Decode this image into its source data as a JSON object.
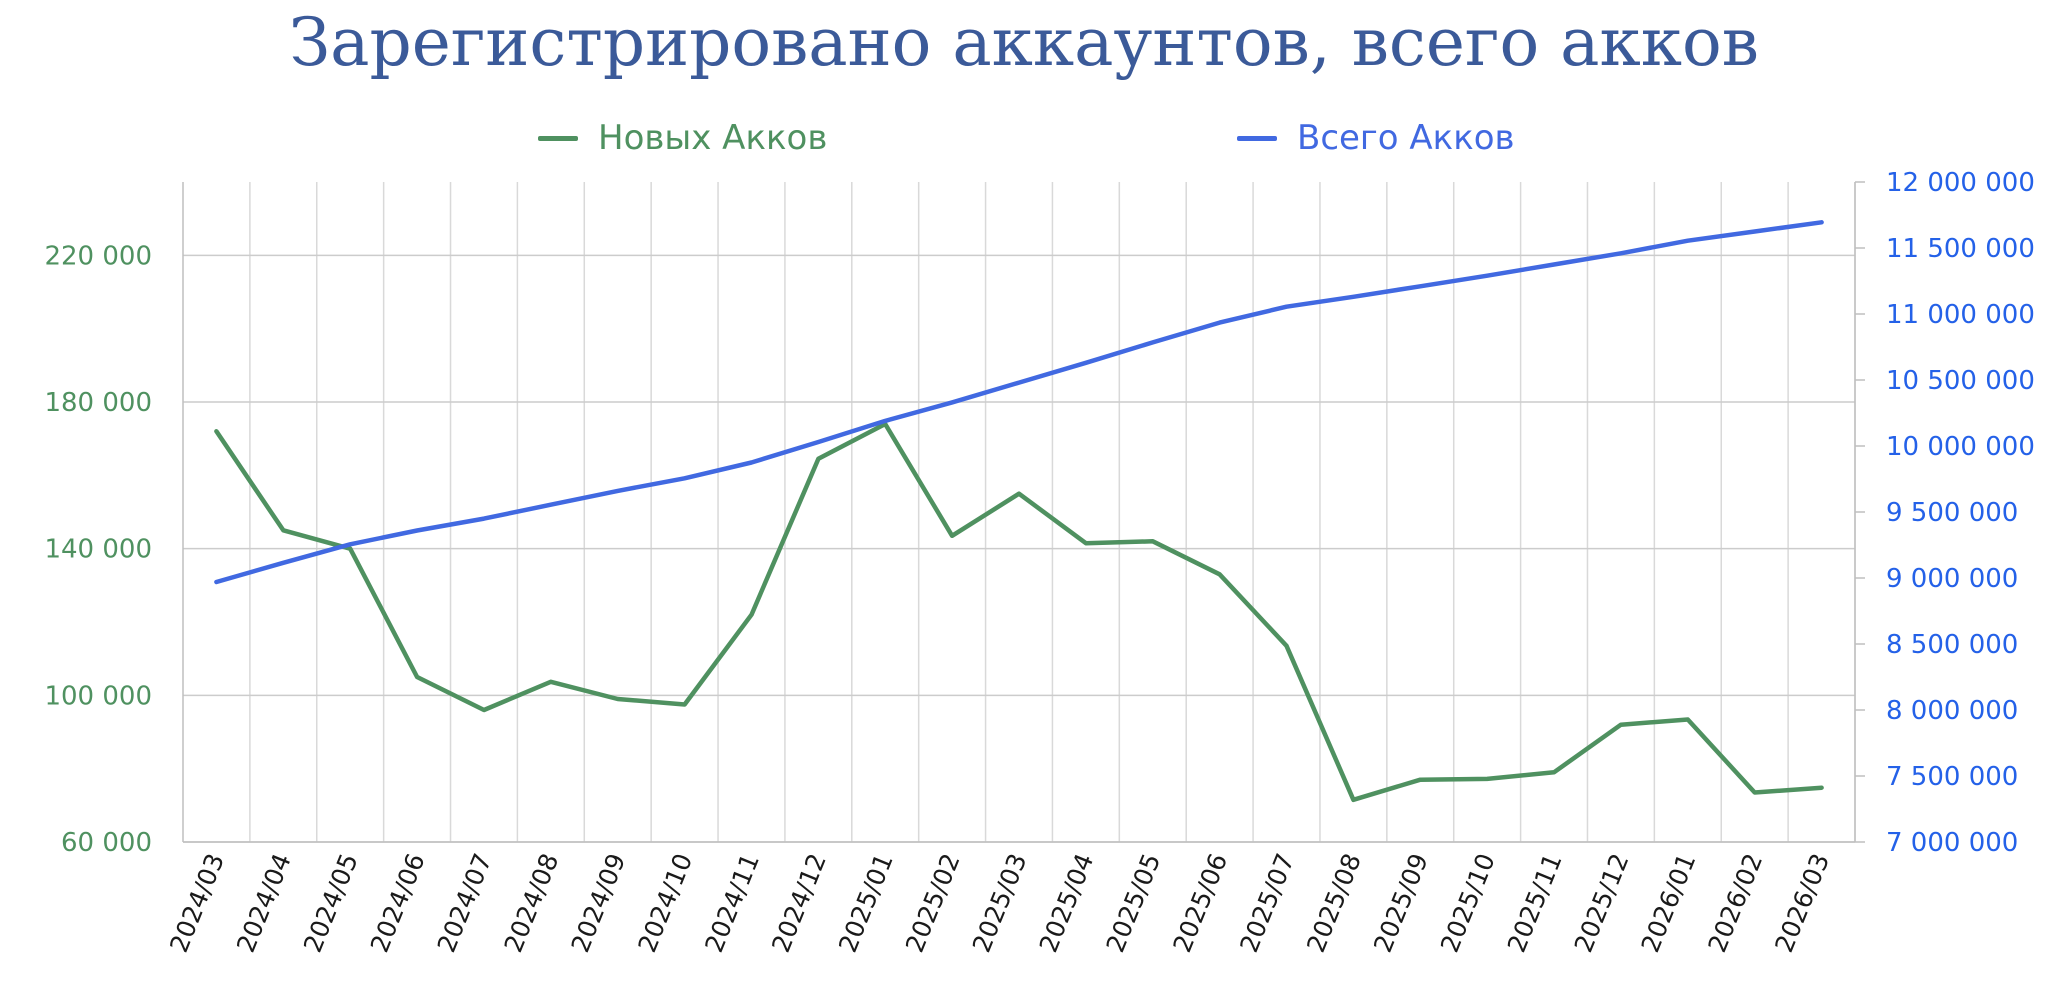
{
  "chart_data": {
    "type": "line",
    "title": "Зарегистрировано аккаунтов, всего акков",
    "categories": [
      "2024/03",
      "2024/04",
      "2024/05",
      "2024/06",
      "2024/07",
      "2024/08",
      "2024/09",
      "2024/10",
      "2024/11",
      "2024/12",
      "2025/01",
      "2025/02",
      "2025/03",
      "2025/04",
      "2025/05",
      "2025/06",
      "2025/07",
      "2025/08",
      "2025/09",
      "2025/10",
      "2025/11",
      "2025/12",
      "2026/01",
      "2026/02",
      "2026/03"
    ],
    "series": [
      {
        "name": "Новых Акков",
        "axis": "left",
        "color": "#4f9160",
        "values": [
          172000,
          145000,
          140000,
          105000,
          96000,
          103700,
          99000,
          97500,
          122000,
          164500,
          174000,
          143500,
          155000,
          141500,
          142000,
          133000,
          113500,
          71500,
          77000,
          77200,
          79000,
          92000,
          93400,
          73500,
          74800
        ]
      },
      {
        "name": "Всего Акков",
        "axis": "right",
        "color": "#4169e1",
        "values": [
          8970000,
          9115000,
          9255000,
          9360000,
          9450000,
          9555000,
          9660000,
          9755000,
          9875000,
          10030000,
          10190000,
          10330000,
          10480000,
          10630000,
          10785000,
          10935000,
          11055000,
          11130000,
          11210000,
          11290000,
          11375000,
          11460000,
          11555000,
          11625000,
          11695000
        ]
      }
    ],
    "y_left": {
      "min": 60000,
      "max": 240000,
      "ticks": [
        60000,
        100000,
        140000,
        180000,
        220000
      ],
      "tick_labels": [
        "60 000",
        "100 000",
        "140 000",
        "180 000",
        "220 000"
      ],
      "color": "#4f9160"
    },
    "y_right": {
      "min": 7000000,
      "max": 12000000,
      "ticks": [
        7000000,
        7500000,
        8000000,
        8500000,
        9000000,
        9500000,
        10000000,
        10500000,
        11000000,
        11500000,
        12000000
      ],
      "tick_labels": [
        "7 000 000",
        "7 500 000",
        "8 000 000",
        "8 500 000",
        "9 000 000",
        "9 500 000",
        "10 000 000",
        "10 500 000",
        "11 000 000",
        "11 500 000",
        "12 000 000"
      ],
      "color": "#2461e8"
    },
    "grid": true,
    "legend_position": "top"
  }
}
